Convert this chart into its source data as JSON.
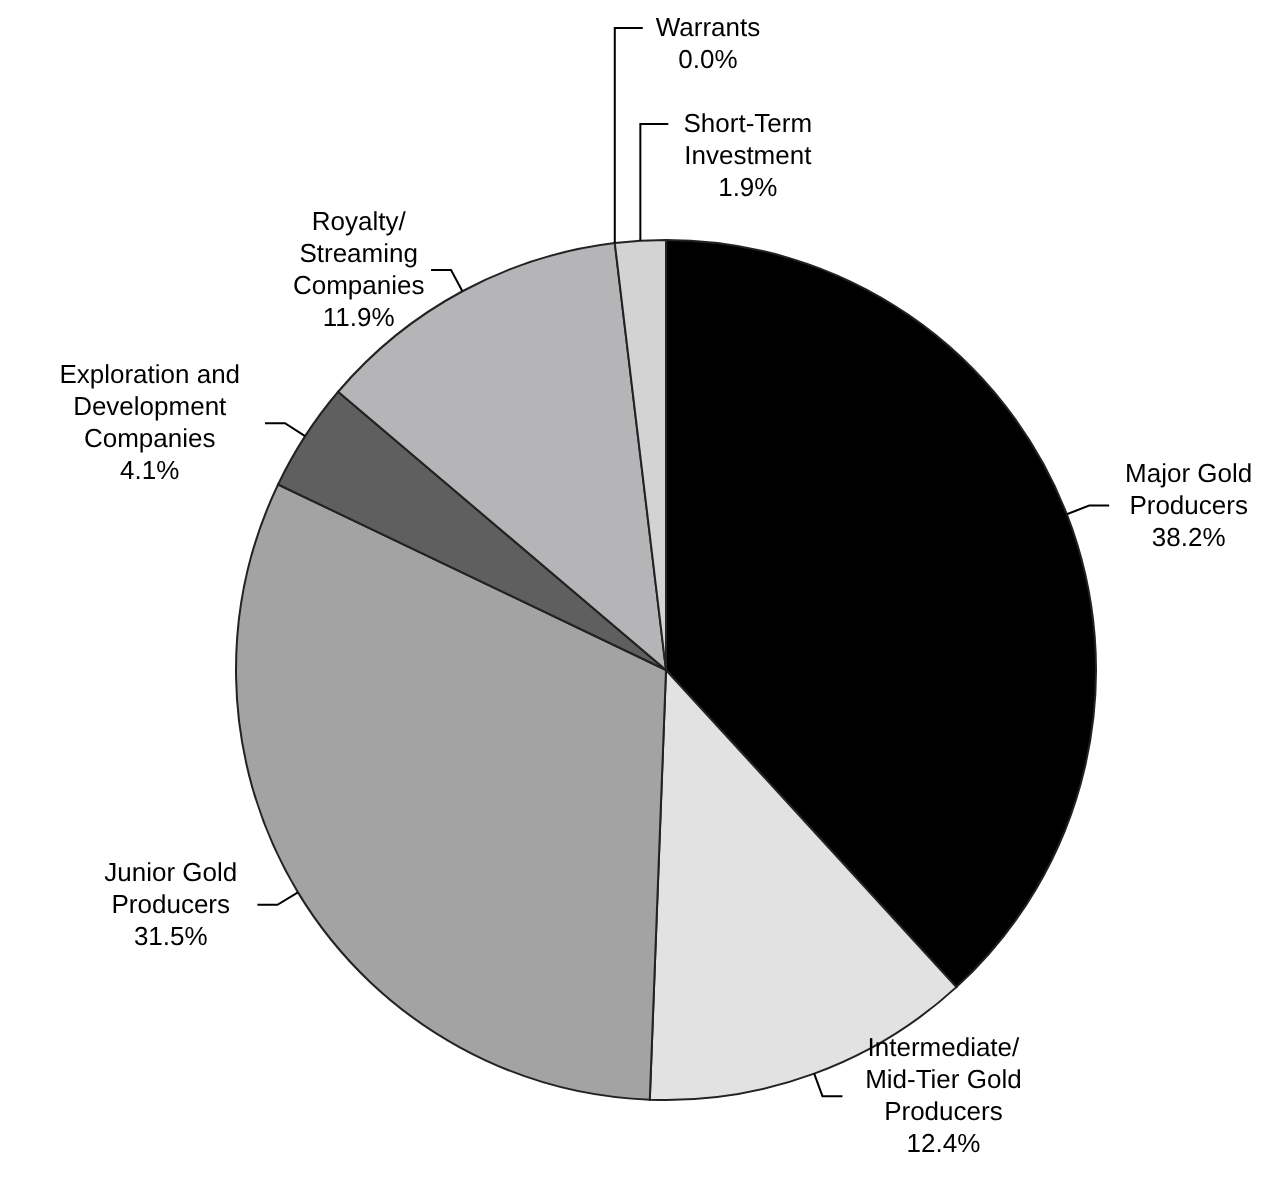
{
  "chart_data": {
    "type": "pie",
    "categories": [
      "Major Gold Producers",
      "Intermediate/Mid-Tier Gold Producers",
      "Junior Gold Producers",
      "Exploration and Development Companies",
      "Royalty/Streaming Companies",
      "Warrants",
      "Short-Term Investment"
    ],
    "values": [
      38.2,
      12.4,
      31.5,
      4.1,
      11.9,
      0.0,
      1.9
    ],
    "value_labels": [
      "38.2%",
      "12.4%",
      "31.5%",
      "4.1%",
      "11.9%",
      "0.0%",
      "1.9%"
    ],
    "colors": [
      "#000000",
      "#e2e2e2",
      "#a3a3a3",
      "#5f5f5f",
      "#b5b5b7",
      "#ffffff",
      "#d3d3d3"
    ],
    "legend": false
  }
}
